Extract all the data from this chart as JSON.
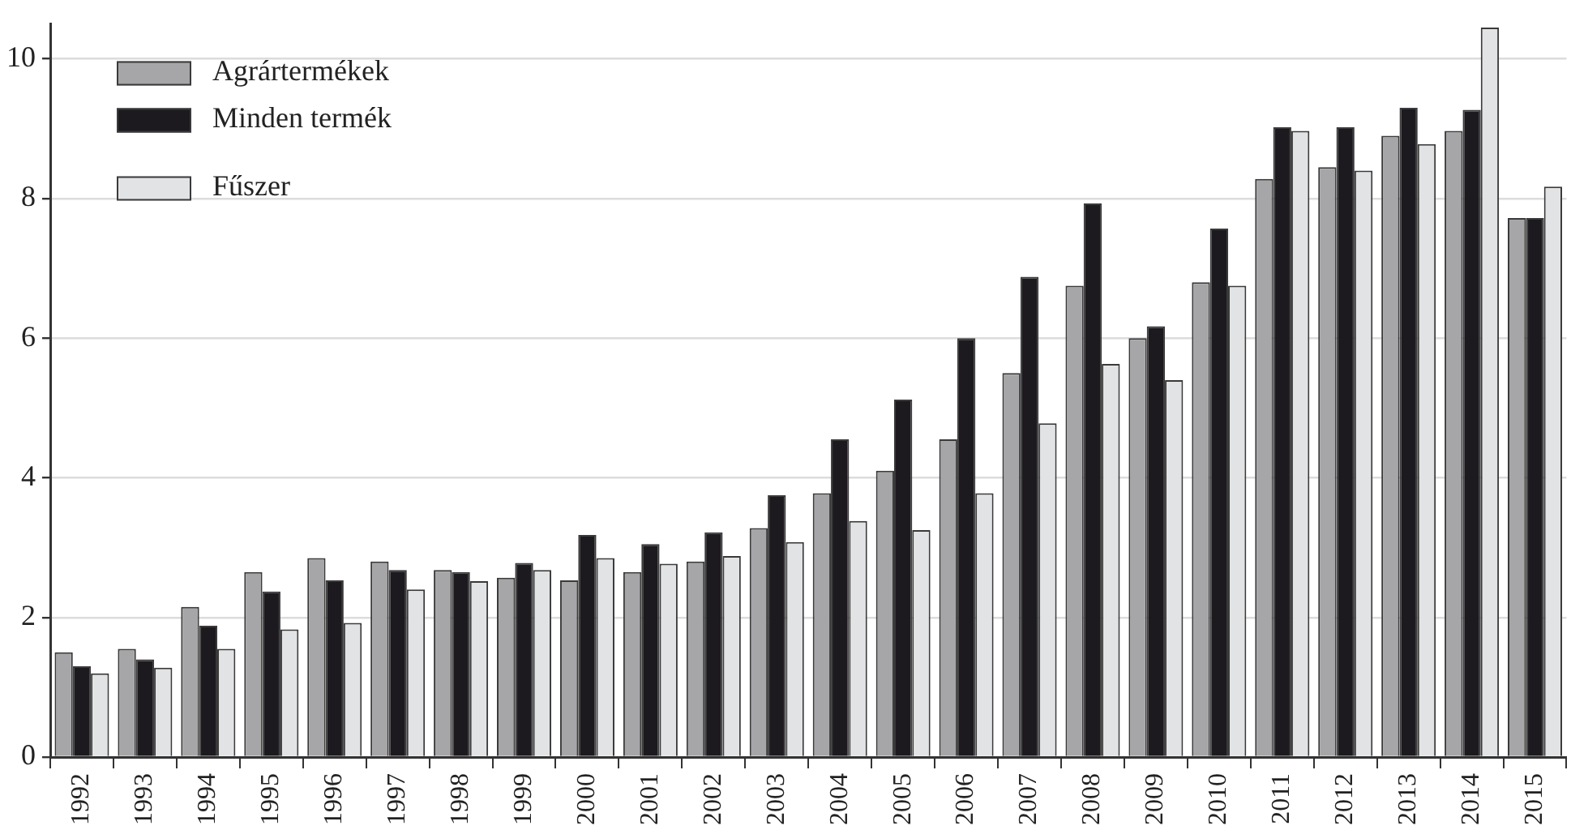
{
  "chart_data": {
    "type": "bar",
    "categories": [
      "1992",
      "1993",
      "1994",
      "1995",
      "1996",
      "1997",
      "1998",
      "1999",
      "2000",
      "2001",
      "2002",
      "2003",
      "2004",
      "2005",
      "2006",
      "2007",
      "2008",
      "2009",
      "2010",
      "2011",
      "2012",
      "2013",
      "2014",
      "2015"
    ],
    "series": [
      {
        "name": "Agrártermékek",
        "color": "#a6a6a8",
        "values": [
          1.5,
          1.55,
          2.15,
          2.65,
          2.85,
          2.8,
          2.68,
          2.57,
          2.53,
          2.65,
          2.8,
          3.28,
          3.78,
          4.1,
          4.55,
          5.5,
          6.75,
          6.0,
          6.8,
          8.28,
          8.45,
          8.9,
          8.97,
          7.72
        ]
      },
      {
        "name": "Minden termék",
        "color": "#1c1a1f",
        "values": [
          1.3,
          1.4,
          1.88,
          2.37,
          2.53,
          2.68,
          2.65,
          2.78,
          3.18,
          3.05,
          3.22,
          3.75,
          4.55,
          5.12,
          6.0,
          6.88,
          7.93,
          6.17,
          7.57,
          9.02,
          9.02,
          9.3,
          9.27,
          7.72
        ]
      },
      {
        "name": "Fűszer",
        "color": "#e2e3e5",
        "values": [
          1.2,
          1.28,
          1.55,
          1.83,
          1.92,
          2.4,
          2.52,
          2.68,
          2.85,
          2.77,
          2.88,
          3.08,
          3.38,
          3.25,
          3.78,
          4.78,
          5.63,
          5.4,
          6.75,
          8.97,
          8.4,
          8.78,
          10.45,
          8.17
        ]
      }
    ],
    "ylim": [
      0,
      10.5
    ],
    "yticks": [
      0,
      2,
      4,
      6,
      8,
      10
    ],
    "grid": "y",
    "legend": "top left"
  }
}
